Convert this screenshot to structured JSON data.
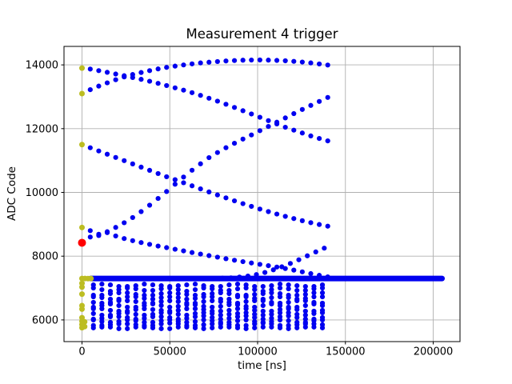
{
  "chart_data": {
    "type": "scatter",
    "title": "Measurement 4 trigger",
    "xlabel": "time [ns]",
    "ylabel": "ADC Code",
    "xlim": [
      -10250,
      215250
    ],
    "ylim": [
      5320,
      14580
    ],
    "xticks": [
      0,
      50000,
      100000,
      150000,
      200000
    ],
    "yticks": [
      6000,
      8000,
      10000,
      12000,
      14000
    ],
    "grid": true,
    "colors": {
      "dot": "#0000f0",
      "first_sample": "#bcbd22",
      "trigger": "#ff0000",
      "grid": "#b0b0b0",
      "spine": "#000000",
      "text": "#000000",
      "background": "#ffffff"
    },
    "markers": {
      "dot_radius": 3.1,
      "first_sample_radius": 3.5,
      "trigger_radius": 5,
      "band_width": 7
    },
    "sampling": {
      "step_ns": 4830,
      "curve_start_ns": 4700,
      "rows_start_ns": 6500,
      "rows_end_ns": 140200
    },
    "series": [
      {
        "name": "trace-a-descending",
        "x_start": 4700,
        "x_end": 140200,
        "keypoints": [
          [
            0,
            13925
          ],
          [
            5000,
            13865
          ],
          [
            10000,
            13815
          ],
          [
            15000,
            13760
          ],
          [
            20000,
            13705
          ],
          [
            25000,
            13650
          ],
          [
            30000,
            13590
          ],
          [
            36000,
            13520
          ],
          [
            42000,
            13440
          ],
          [
            48000,
            13355
          ],
          [
            54000,
            13265
          ],
          [
            60000,
            13175
          ],
          [
            68000,
            13035
          ],
          [
            76000,
            12885
          ],
          [
            84000,
            12725
          ],
          [
            92000,
            12555
          ],
          [
            100000,
            12385
          ],
          [
            108000,
            12210
          ],
          [
            116000,
            12040
          ],
          [
            124000,
            11890
          ],
          [
            132000,
            11740
          ],
          [
            140000,
            11615
          ]
        ]
      },
      {
        "name": "trace-b-rising",
        "x_start": 4700,
        "x_end": 140200,
        "keypoints": [
          [
            0,
            13100
          ],
          [
            5000,
            13230
          ],
          [
            10000,
            13345
          ],
          [
            15000,
            13450
          ],
          [
            20000,
            13550
          ],
          [
            25000,
            13640
          ],
          [
            30000,
            13715
          ],
          [
            36000,
            13790
          ],
          [
            42000,
            13860
          ],
          [
            48000,
            13920
          ],
          [
            54000,
            13970
          ],
          [
            60000,
            14015
          ],
          [
            68000,
            14065
          ],
          [
            76000,
            14100
          ],
          [
            84000,
            14130
          ],
          [
            92000,
            14148
          ],
          [
            100000,
            14155
          ],
          [
            108000,
            14148
          ],
          [
            116000,
            14128
          ],
          [
            124000,
            14098
          ],
          [
            132000,
            14052
          ],
          [
            140000,
            13995
          ]
        ]
      },
      {
        "name": "trace-c-descending",
        "x_start": 4700,
        "x_end": 140200,
        "keypoints": [
          [
            0,
            11500
          ],
          [
            5000,
            11395
          ],
          [
            10000,
            11290
          ],
          [
            15000,
            11185
          ],
          [
            20000,
            11080
          ],
          [
            25000,
            10975
          ],
          [
            30000,
            10870
          ],
          [
            36000,
            10745
          ],
          [
            42000,
            10620
          ],
          [
            48000,
            10495
          ],
          [
            55000,
            10360
          ],
          [
            62000,
            10220
          ],
          [
            70000,
            10060
          ],
          [
            78000,
            9905
          ],
          [
            86000,
            9750
          ],
          [
            94000,
            9605
          ],
          [
            102000,
            9465
          ],
          [
            110000,
            9335
          ],
          [
            118000,
            9215
          ],
          [
            126000,
            9105
          ],
          [
            133000,
            9015
          ],
          [
            140000,
            8940
          ]
        ]
      },
      {
        "name": "trace-d-rising",
        "x_start": 4700,
        "x_end": 140200,
        "keypoints": [
          [
            0,
            8680
          ],
          [
            4700,
            8600
          ],
          [
            9400,
            8645
          ],
          [
            14100,
            8760
          ],
          [
            18800,
            8890
          ],
          [
            23500,
            9030
          ],
          [
            30000,
            9250
          ],
          [
            36000,
            9490
          ],
          [
            42000,
            9750
          ],
          [
            48000,
            10020
          ],
          [
            56000,
            10400
          ],
          [
            64000,
            10755
          ],
          [
            72000,
            11080
          ],
          [
            80000,
            11345
          ],
          [
            88000,
            11575
          ],
          [
            96000,
            11790
          ],
          [
            104000,
            12010
          ],
          [
            112000,
            12230
          ],
          [
            120000,
            12455
          ],
          [
            128000,
            12670
          ],
          [
            134000,
            12825
          ],
          [
            140000,
            12980
          ]
        ]
      },
      {
        "name": "trace-e-descending",
        "x_start": 4700,
        "x_end": 140200,
        "keypoints": [
          [
            0,
            8900
          ],
          [
            4700,
            8800
          ],
          [
            9400,
            8685
          ],
          [
            14100,
            8745
          ],
          [
            18800,
            8640
          ],
          [
            23500,
            8560
          ],
          [
            30000,
            8470
          ],
          [
            36000,
            8400
          ],
          [
            42000,
            8330
          ],
          [
            48000,
            8270
          ],
          [
            56000,
            8185
          ],
          [
            64000,
            8100
          ],
          [
            72000,
            8020
          ],
          [
            80000,
            7940
          ],
          [
            88000,
            7860
          ],
          [
            96000,
            7790
          ],
          [
            104000,
            7720
          ],
          [
            112000,
            7650
          ],
          [
            120000,
            7570
          ],
          [
            127000,
            7490
          ],
          [
            134000,
            7410
          ],
          [
            140000,
            7350
          ]
        ]
      },
      {
        "name": "trace-f-rising-from-band",
        "x_start": 80000,
        "x_end": 140200,
        "keypoints": [
          [
            80000,
            7310
          ],
          [
            85000,
            7320
          ],
          [
            90000,
            7345
          ],
          [
            95000,
            7380
          ],
          [
            100000,
            7430
          ],
          [
            105000,
            7500
          ],
          [
            110000,
            7590
          ],
          [
            115000,
            7690
          ],
          [
            120000,
            7800
          ],
          [
            125000,
            7925
          ],
          [
            130000,
            8055
          ],
          [
            135000,
            8180
          ],
          [
            140000,
            8300
          ]
        ]
      }
    ],
    "flat_band": {
      "y": 7300,
      "x_start": 5000,
      "x_end": 205000
    },
    "rows": [
      {
        "y": 7080,
        "amp": 40,
        "period": 26000,
        "phase": 0.5
      },
      {
        "y": 6955,
        "amp": 45,
        "period": 22000,
        "phase": 2.1
      },
      {
        "y": 6810,
        "amp": 40,
        "period": 28000,
        "phase": 4.2
      },
      {
        "y": 6690,
        "amp": 45,
        "period": 21000,
        "phase": 1.2
      },
      {
        "y": 6565,
        "amp": 40,
        "period": 25000,
        "phase": 3.3
      },
      {
        "y": 6440,
        "amp": 50,
        "period": 23000,
        "phase": 5.1
      },
      {
        "y": 6310,
        "amp": 45,
        "period": 27000,
        "phase": 0.9
      },
      {
        "y": 6190,
        "amp": 40,
        "period": 22500,
        "phase": 2.8
      },
      {
        "y": 6070,
        "amp": 45,
        "period": 24500,
        "phase": 4.6
      },
      {
        "y": 5960,
        "amp": 40,
        "period": 21500,
        "phase": 1.7
      },
      {
        "y": 5855,
        "amp": 35,
        "period": 26500,
        "phase": 3.9
      },
      {
        "y": 5755,
        "amp": 30,
        "period": 23500,
        "phase": 0.2
      }
    ],
    "first_samples": [
      [
        0,
        13900
      ],
      [
        0,
        13100
      ],
      [
        0,
        11500
      ],
      [
        0,
        8900
      ],
      [
        0,
        7300
      ],
      [
        1700,
        7300
      ],
      [
        3400,
        7295
      ],
      [
        5100,
        7300
      ],
      [
        0,
        7150
      ],
      [
        0,
        7030
      ],
      [
        0,
        6810
      ],
      [
        0,
        6450
      ],
      [
        0,
        6340
      ],
      [
        0,
        6070
      ],
      [
        0,
        5960
      ],
      [
        1500,
        5940
      ],
      [
        0,
        5855
      ],
      [
        0,
        5755
      ],
      [
        1500,
        5790
      ]
    ],
    "trigger_point": [
      0,
      8420
    ]
  }
}
